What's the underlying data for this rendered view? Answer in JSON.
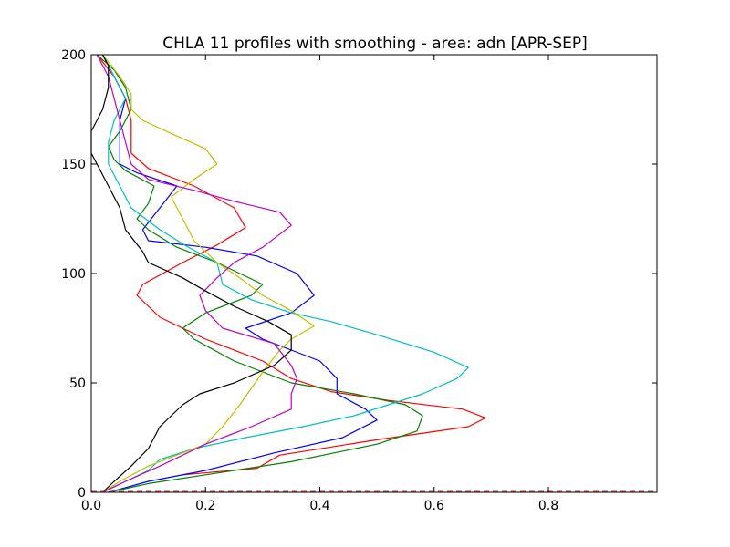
{
  "chart_data": {
    "type": "line",
    "title": "CHLA 11 profiles with smoothing - area: adn [APR-SEP]",
    "xlabel": "",
    "ylabel": "",
    "xlim": [
      0,
      0.99
    ],
    "ylim": [
      0,
      200
    ],
    "grid": false,
    "legend": "none",
    "x_ticks": [
      "0.0",
      "0.2",
      "0.4",
      "0.6",
      "0.8"
    ],
    "x_tick_values": [
      0,
      0.2,
      0.4,
      0.6,
      0.8
    ],
    "y_ticks": [
      "0",
      "50",
      "100",
      "150",
      "200"
    ],
    "y_tick_values": [
      0,
      50,
      100,
      150,
      200
    ],
    "baseline": {
      "y": 0,
      "color": "#d04040",
      "style": "dashed"
    },
    "series": [
      {
        "color": "#ff0000",
        "points": [
          [
            0.16,
            8
          ],
          [
            0.29,
            11
          ],
          [
            0.33,
            17
          ],
          [
            0.5,
            24
          ],
          [
            0.66,
            30
          ],
          [
            0.69,
            34
          ],
          [
            0.65,
            38
          ],
          [
            0.52,
            42
          ],
          [
            0.42,
            46
          ],
          [
            0.35,
            52
          ],
          [
            0.3,
            60
          ],
          [
            0.2,
            70
          ],
          [
            0.12,
            80
          ],
          [
            0.08,
            90
          ],
          [
            0.09,
            95
          ],
          [
            0.16,
            105
          ],
          [
            0.22,
            113
          ],
          [
            0.27,
            121
          ],
          [
            0.25,
            130
          ],
          [
            0.18,
            140
          ],
          [
            0.1,
            148
          ],
          [
            0.07,
            155
          ],
          [
            0.07,
            162
          ],
          [
            0.07,
            170
          ],
          [
            0.06,
            180
          ],
          [
            0.04,
            190
          ],
          [
            0.01,
            200
          ]
        ]
      },
      {
        "color": "#0000ff",
        "points": [
          [
            0.03,
            0
          ],
          [
            0.1,
            5
          ],
          [
            0.2,
            10
          ],
          [
            0.32,
            18
          ],
          [
            0.44,
            25
          ],
          [
            0.5,
            33
          ],
          [
            0.48,
            38
          ],
          [
            0.43,
            45
          ],
          [
            0.43,
            52
          ],
          [
            0.4,
            60
          ],
          [
            0.35,
            65
          ],
          [
            0.3,
            70
          ],
          [
            0.27,
            75
          ],
          [
            0.35,
            82
          ],
          [
            0.39,
            90
          ],
          [
            0.36,
            100
          ],
          [
            0.29,
            108
          ],
          [
            0.2,
            112
          ],
          [
            0.1,
            115
          ],
          [
            0.09,
            120
          ],
          [
            0.12,
            130
          ],
          [
            0.15,
            140
          ],
          [
            0.08,
            146
          ],
          [
            0.05,
            150
          ],
          [
            0.05,
            160
          ],
          [
            0.05,
            170
          ],
          [
            0.06,
            180
          ],
          [
            0.04,
            190
          ],
          [
            0.02,
            200
          ]
        ]
      },
      {
        "color": "#008000",
        "points": [
          [
            0.03,
            0
          ],
          [
            0.1,
            4
          ],
          [
            0.2,
            8
          ],
          [
            0.35,
            14
          ],
          [
            0.5,
            22
          ],
          [
            0.57,
            28
          ],
          [
            0.58,
            35
          ],
          [
            0.55,
            40
          ],
          [
            0.46,
            45
          ],
          [
            0.35,
            50
          ],
          [
            0.3,
            55
          ],
          [
            0.25,
            60
          ],
          [
            0.18,
            70
          ],
          [
            0.16,
            75
          ],
          [
            0.2,
            82
          ],
          [
            0.28,
            90
          ],
          [
            0.3,
            95
          ],
          [
            0.22,
            105
          ],
          [
            0.15,
            112
          ],
          [
            0.1,
            120
          ],
          [
            0.08,
            125
          ],
          [
            0.1,
            132
          ],
          [
            0.11,
            140
          ],
          [
            0.06,
            147
          ],
          [
            0.04,
            152
          ],
          [
            0.03,
            158
          ],
          [
            0.05,
            165
          ],
          [
            0.07,
            175
          ],
          [
            0.06,
            185
          ],
          [
            0.04,
            193
          ],
          [
            0.01,
            200
          ]
        ]
      },
      {
        "color": "#00bfbf",
        "points": [
          [
            0.02,
            0
          ],
          [
            0.06,
            5
          ],
          [
            0.1,
            10
          ],
          [
            0.12,
            15
          ],
          [
            0.18,
            20
          ],
          [
            0.27,
            25
          ],
          [
            0.37,
            30
          ],
          [
            0.46,
            35
          ],
          [
            0.58,
            45
          ],
          [
            0.64,
            52
          ],
          [
            0.66,
            57
          ],
          [
            0.6,
            64
          ],
          [
            0.5,
            72
          ],
          [
            0.42,
            78
          ],
          [
            0.35,
            82
          ],
          [
            0.28,
            88
          ],
          [
            0.23,
            95
          ],
          [
            0.22,
            105
          ],
          [
            0.17,
            112
          ],
          [
            0.12,
            120
          ],
          [
            0.07,
            130
          ],
          [
            0.05,
            140
          ],
          [
            0.03,
            150
          ],
          [
            0.03,
            160
          ],
          [
            0.04,
            170
          ],
          [
            0.06,
            180
          ],
          [
            0.04,
            190
          ],
          [
            0.02,
            200
          ]
        ]
      },
      {
        "color": "#bfbf00",
        "points": [
          [
            0.02,
            0
          ],
          [
            0.05,
            5
          ],
          [
            0.1,
            12
          ],
          [
            0.2,
            22
          ],
          [
            0.23,
            30
          ],
          [
            0.26,
            40
          ],
          [
            0.3,
            55
          ],
          [
            0.33,
            65
          ],
          [
            0.35,
            70
          ],
          [
            0.39,
            76
          ],
          [
            0.35,
            83
          ],
          [
            0.3,
            90
          ],
          [
            0.26,
            98
          ],
          [
            0.22,
            105
          ],
          [
            0.18,
            115
          ],
          [
            0.16,
            125
          ],
          [
            0.14,
            135
          ],
          [
            0.18,
            143
          ],
          [
            0.22,
            150
          ],
          [
            0.2,
            157
          ],
          [
            0.14,
            164
          ],
          [
            0.09,
            170
          ],
          [
            0.07,
            175
          ],
          [
            0.07,
            182
          ],
          [
            0.05,
            190
          ],
          [
            0.02,
            200
          ]
        ]
      },
      {
        "color": "#bf00bf",
        "points": [
          [
            0.02,
            0
          ],
          [
            0.06,
            5
          ],
          [
            0.12,
            12
          ],
          [
            0.2,
            22
          ],
          [
            0.28,
            30
          ],
          [
            0.35,
            38
          ],
          [
            0.35,
            45
          ],
          [
            0.36,
            52
          ],
          [
            0.35,
            58
          ],
          [
            0.32,
            68
          ],
          [
            0.23,
            75
          ],
          [
            0.2,
            83
          ],
          [
            0.19,
            90
          ],
          [
            0.22,
            98
          ],
          [
            0.25,
            105
          ],
          [
            0.3,
            112
          ],
          [
            0.33,
            118
          ],
          [
            0.35,
            122
          ],
          [
            0.33,
            128
          ],
          [
            0.25,
            133
          ],
          [
            0.18,
            138
          ],
          [
            0.1,
            143
          ],
          [
            0.07,
            150
          ],
          [
            0.06,
            160
          ],
          [
            0.05,
            170
          ],
          [
            0.04,
            180
          ],
          [
            0.03,
            190
          ],
          [
            0.01,
            200
          ]
        ]
      },
      {
        "color": "#000000",
        "points": [
          [
            0.02,
            0
          ],
          [
            0.04,
            5
          ],
          [
            0.07,
            12
          ],
          [
            0.1,
            20
          ],
          [
            0.12,
            30
          ],
          [
            0.16,
            40
          ],
          [
            0.19,
            45
          ],
          [
            0.25,
            50
          ],
          [
            0.32,
            58
          ],
          [
            0.35,
            65
          ],
          [
            0.35,
            72
          ],
          [
            0.31,
            78
          ],
          [
            0.25,
            85
          ],
          [
            0.2,
            92
          ],
          [
            0.16,
            98
          ],
          [
            0.1,
            105
          ],
          [
            0.09,
            110
          ],
          [
            0.06,
            120
          ],
          [
            0.05,
            130
          ],
          [
            0.03,
            140
          ],
          [
            0.0,
            155
          ],
          [
            0.0,
            165
          ],
          [
            0.02,
            175
          ],
          [
            0.03,
            185
          ],
          [
            0.03,
            195
          ],
          [
            0.02,
            200
          ]
        ]
      }
    ]
  }
}
